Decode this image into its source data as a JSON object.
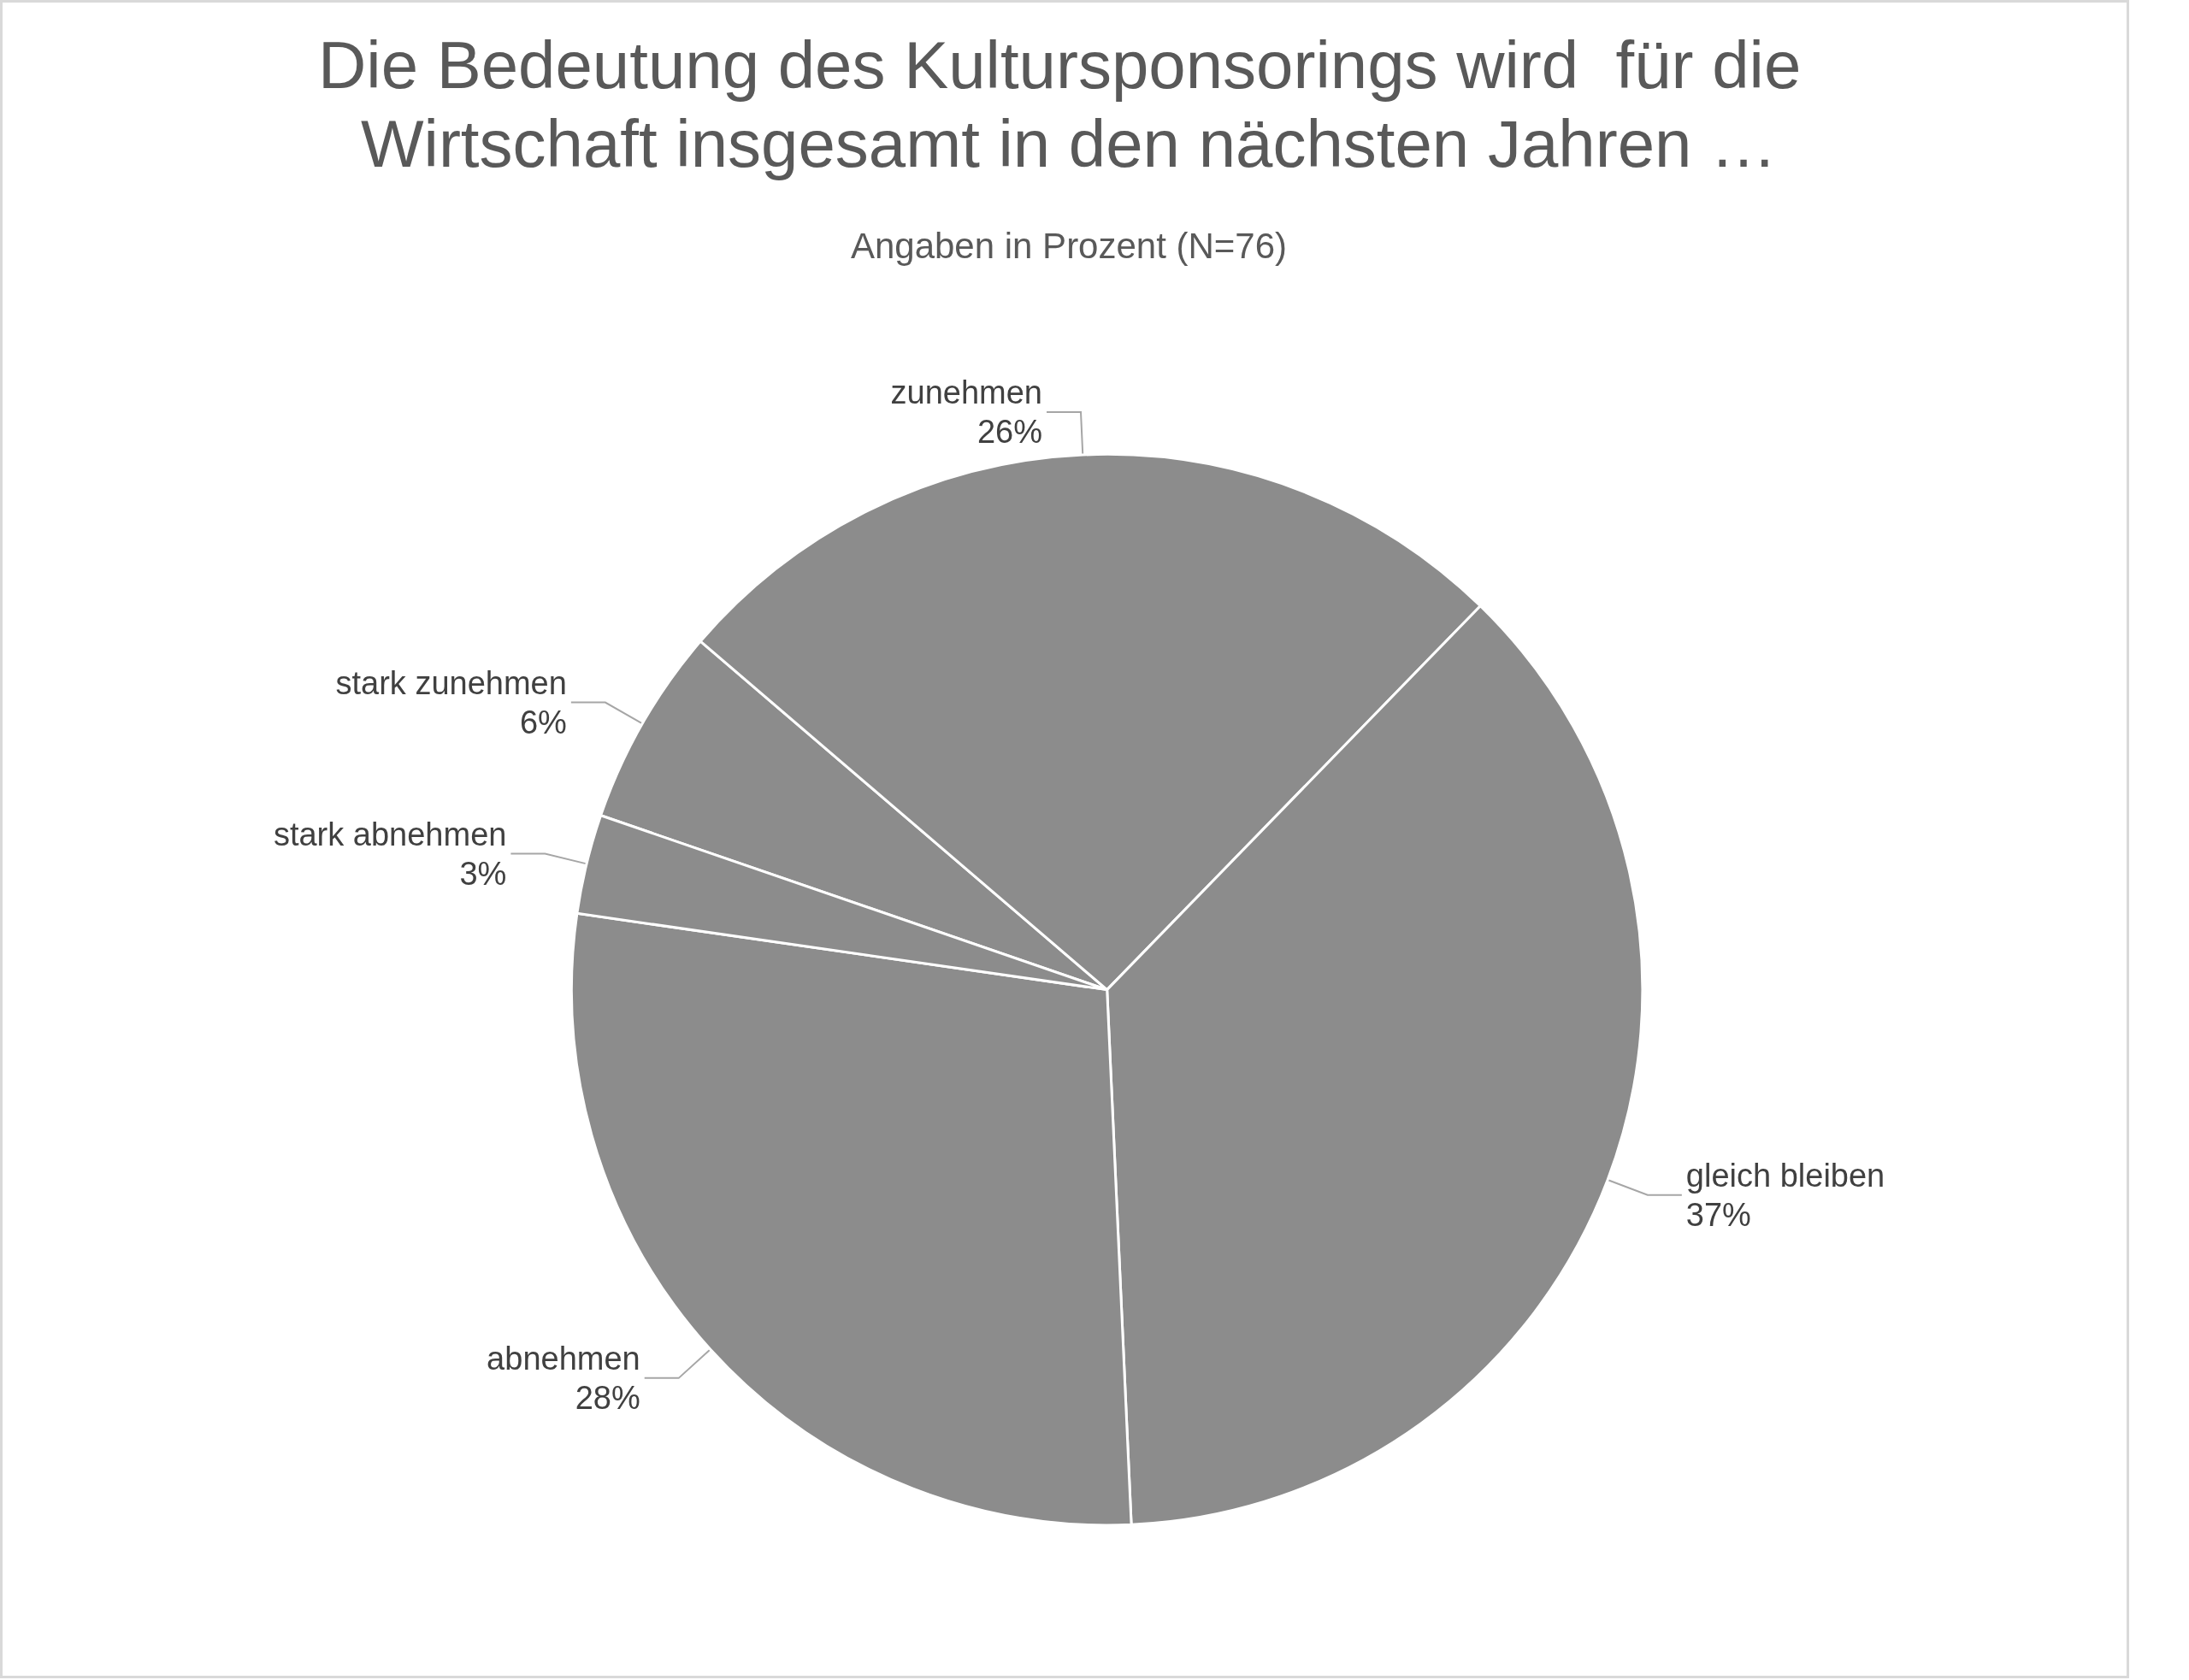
{
  "chart_data": {
    "type": "pie",
    "title": "Die Bedeutung des Kultursponsorings wird  für die Wirtschaft insgesamt in den nächsten Jahren …",
    "subtitle": "Angaben in Prozent (N=76)",
    "categories": [
      "stark zunehmen",
      "zunehmen",
      "gleich bleiben",
      "abnehmen",
      "stark abnehmen"
    ],
    "values": [
      6,
      26,
      37,
      28,
      3
    ],
    "value_labels": [
      "6%",
      "26%",
      "37%",
      "28%",
      "3%"
    ],
    "colors": [
      "#8c8c8c",
      "#8c8c8c",
      "#8c8c8c",
      "#8c8c8c",
      "#8c8c8c"
    ]
  }
}
